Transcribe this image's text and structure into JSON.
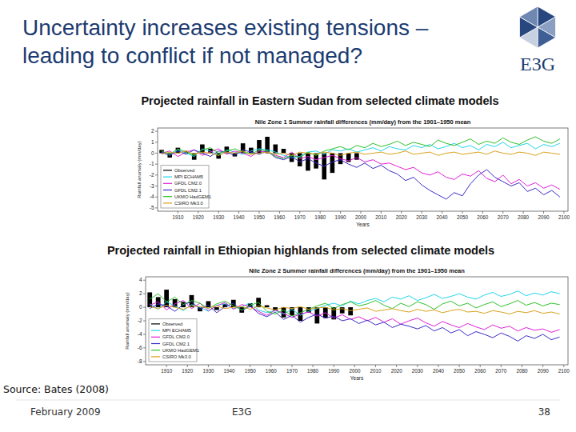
{
  "slide": {
    "title": [
      "Uncertainty increases existing tensions –",
      "leading to conflict if not managed?"
    ],
    "logo": "E3G",
    "source": "Source: Bates (2008)",
    "date": "February 2009",
    "footer": "E3G",
    "page": 38
  },
  "chart_data": [
    {
      "type": "line",
      "subtitle": "Projected rainfall in Eastern Sudan from selected climate models",
      "title": "Nile Zone 1 Summer rainfall differences (mm/day) from the 1901–1950 mean",
      "x_label": "Years",
      "y_label": "Rainfall anomaly (mm/day)",
      "xlim": [
        1900,
        2102
      ],
      "xticks": [
        1910,
        1920,
        1930,
        1940,
        1950,
        1960,
        1970,
        1980,
        1990,
        2000,
        2010,
        2020,
        2030,
        2040,
        2050,
        2060,
        2070,
        2080,
        2090,
        2100
      ],
      "ylim": [
        -5.3,
        2.3
      ],
      "yticks": [
        2,
        1,
        0,
        -1,
        -2,
        -3,
        -4,
        -5
      ],
      "grid": false,
      "legend": "lower left",
      "x": [
        1902,
        1906,
        1910,
        1914,
        1918,
        1922,
        1926,
        1930,
        1934,
        1938,
        1942,
        1946,
        1950,
        1954,
        1958,
        1962,
        1966,
        1970,
        1974,
        1978,
        1982,
        1986,
        1990,
        1994,
        1998,
        2002,
        2006,
        2010,
        2014,
        2018,
        2022,
        2026,
        2030,
        2034,
        2038,
        2042,
        2046,
        2050,
        2054,
        2058,
        2062,
        2066,
        2070,
        2074,
        2078,
        2082,
        2086,
        2090,
        2094,
        2098
      ],
      "series": [
        {
          "name": "Observed",
          "type": "bar",
          "color": "#000000",
          "values": [
            0.3,
            -0.4,
            0.5,
            0.2,
            -0.6,
            0.8,
            0.4,
            -0.5,
            0.6,
            -0.3,
            0.9,
            0.5,
            1.2,
            1.5,
            0.8,
            0.4,
            -0.8,
            -1.2,
            -1.6,
            -1.4,
            -2.4,
            -1.8,
            -1.0,
            -0.8,
            -0.6,
            null,
            null,
            null,
            null,
            null,
            null,
            null,
            null,
            null,
            null,
            null,
            null,
            null,
            null,
            null,
            null,
            null,
            null,
            null,
            null,
            null,
            null,
            null,
            null,
            null
          ]
        },
        {
          "name": "MPI ECHAM5",
          "type": "line",
          "color": "#22d4ec",
          "values": [
            0.1,
            -0.2,
            0.3,
            0.0,
            -0.3,
            0.4,
            0.2,
            -0.2,
            0.3,
            0.1,
            -0.1,
            0.2,
            0.4,
            0.3,
            0.1,
            -0.2,
            -0.4,
            -0.3,
            0.1,
            0.2,
            -0.1,
            0.3,
            0.2,
            0.4,
            0.1,
            0.3,
            0.5,
            0.2,
            0.6,
            0.4,
            0.3,
            0.7,
            0.5,
            0.8,
            0.4,
            0.6,
            0.9,
            0.5,
            0.7,
            0.3,
            0.8,
            0.6,
            1.0,
            0.5,
            0.7,
            0.9,
            0.4,
            0.8,
            0.6,
            0.9
          ]
        },
        {
          "name": "GFDL CM2.0",
          "type": "line",
          "color": "#e020d8",
          "values": [
            0.0,
            0.2,
            -0.3,
            0.1,
            0.3,
            -0.2,
            0.1,
            0.4,
            -0.1,
            0.2,
            0.0,
            -0.3,
            0.2,
            0.1,
            -0.2,
            -0.4,
            0.1,
            -0.5,
            -0.3,
            -0.6,
            -0.4,
            -0.2,
            -0.5,
            -0.7,
            -0.4,
            -0.8,
            -0.6,
            -1.0,
            -0.9,
            -1.2,
            -1.5,
            -1.3,
            -1.8,
            -2.0,
            -1.7,
            -2.2,
            -2.4,
            -1.9,
            -2.1,
            -1.6,
            -2.3,
            -2.6,
            -2.0,
            -2.8,
            -2.4,
            -3.0,
            -2.7,
            -3.2,
            -2.9,
            -3.3
          ]
        },
        {
          "name": "GFDL CM2.1",
          "type": "line",
          "color": "#3a2cc4",
          "values": [
            0.1,
            -0.2,
            0.2,
            -0.1,
            0.3,
            0.0,
            -0.3,
            0.2,
            0.1,
            -0.2,
            0.3,
            0.1,
            -0.1,
            0.2,
            -0.4,
            -0.6,
            -0.3,
            -0.8,
            -0.5,
            -0.9,
            -1.2,
            -0.8,
            -0.6,
            -1.0,
            -1.3,
            -0.9,
            -1.4,
            -1.1,
            -1.6,
            -1.9,
            -2.5,
            -2.2,
            -2.9,
            -3.4,
            -3.8,
            -4.2,
            -3.6,
            -3.9,
            -2.8,
            -2.0,
            -1.5,
            -2.2,
            -2.6,
            -3.0,
            -2.7,
            -3.5,
            -3.2,
            -3.8,
            -3.4,
            -4.0
          ]
        },
        {
          "name": "UKMO HadGEM1",
          "type": "line",
          "color": "#2ec02a",
          "values": [
            0.2,
            -0.1,
            0.4,
            0.1,
            -0.2,
            0.3,
            0.5,
            0.0,
            0.2,
            0.4,
            0.1,
            -0.1,
            0.3,
            0.2,
            -0.3,
            -0.5,
            -0.2,
            -0.4,
            0.1,
            -0.2,
            0.2,
            0.4,
            0.6,
            0.3,
            0.7,
            0.5,
            0.9,
            0.6,
            0.8,
            1.1,
            0.7,
            1.0,
            0.8,
            0.6,
            1.2,
            0.9,
            0.7,
            1.0,
            1.3,
            0.8,
            1.1,
            0.9,
            1.4,
            1.0,
            0.8,
            1.2,
            1.5,
            1.1,
            0.9,
            1.3
          ]
        },
        {
          "name": "CSIRO Mk3.0",
          "type": "line",
          "color": "#d8a21c",
          "values": [
            -0.1,
            0.1,
            0.0,
            0.2,
            -0.1,
            0.1,
            0.0,
            -0.2,
            0.1,
            0.0,
            0.2,
            -0.1,
            0.0,
            0.1,
            -0.1,
            0.0,
            -0.2,
            0.1,
            0.0,
            -0.1,
            0.1,
            0.0,
            -0.2,
            0.0,
            0.1,
            -0.1,
            0.0,
            0.1,
            -0.1,
            0.0,
            0.2,
            -0.1,
            0.0,
            0.1,
            -0.2,
            0.0,
            0.1,
            -0.1,
            0.0,
            0.1,
            -0.1,
            0.2,
            0.0,
            -0.1,
            0.1,
            0.0,
            -0.2,
            0.1,
            0.0,
            -0.1
          ]
        }
      ]
    },
    {
      "type": "line",
      "subtitle": "Projected rainfall in Ethiopian highlands from selected climate models",
      "title": "Nile Zone 2 Summer rainfall differences (mm/day) from the 1901–1950 mean",
      "x_label": "Years",
      "y_label": "Rainfall anomaly (mm/day)",
      "xlim": [
        1900,
        2102
      ],
      "xticks": [
        1910,
        1920,
        1930,
        1940,
        1950,
        1960,
        1970,
        1980,
        1990,
        2000,
        2010,
        2020,
        2030,
        2040,
        2050,
        2060,
        2070,
        2080,
        2090,
        2100
      ],
      "ylim": [
        -8.5,
        4.5
      ],
      "yticks": [
        4,
        2,
        0,
        -2,
        -4,
        -6,
        -8
      ],
      "grid": false,
      "legend": "lower left",
      "x": [
        1902,
        1906,
        1910,
        1914,
        1918,
        1922,
        1926,
        1930,
        1934,
        1938,
        1942,
        1946,
        1950,
        1954,
        1958,
        1962,
        1966,
        1970,
        1974,
        1978,
        1982,
        1986,
        1990,
        1994,
        1998,
        2002,
        2006,
        2010,
        2014,
        2018,
        2022,
        2026,
        2030,
        2034,
        2038,
        2042,
        2046,
        2050,
        2054,
        2058,
        2062,
        2066,
        2070,
        2074,
        2078,
        2082,
        2086,
        2090,
        2094,
        2098
      ],
      "series": [
        {
          "name": "Observed",
          "type": "bar",
          "color": "#000000",
          "values": [
            2.2,
            1.5,
            2.6,
            1.2,
            0.8,
            1.8,
            -0.6,
            0.9,
            -0.4,
            0.5,
            1.1,
            -0.8,
            0.6,
            1.4,
            0.3,
            -0.5,
            -1.5,
            -1.2,
            -2.0,
            -0.8,
            -2.4,
            -1.6,
            -1.8,
            -0.9,
            -1.2,
            null,
            null,
            null,
            null,
            null,
            null,
            null,
            null,
            null,
            null,
            null,
            null,
            null,
            null,
            null,
            null,
            null,
            null,
            null,
            null,
            null,
            null,
            null,
            null,
            null
          ]
        },
        {
          "name": "MPI ECHAM5",
          "type": "line",
          "color": "#22d4ec",
          "values": [
            0.5,
            -0.3,
            0.8,
            0.2,
            -0.5,
            0.4,
            0.0,
            -0.6,
            0.3,
            0.5,
            -0.2,
            0.1,
            0.6,
            -0.4,
            -0.8,
            -0.5,
            -1.0,
            -0.3,
            -1.2,
            -0.6,
            -0.2,
            0.3,
            0.6,
            0.2,
            0.9,
            0.5,
            1.0,
            1.3,
            0.8,
            1.5,
            1.2,
            1.7,
            1.0,
            1.4,
            1.9,
            1.3,
            1.6,
            2.0,
            1.5,
            1.2,
            1.8,
            2.2,
            1.6,
            1.9,
            2.4,
            1.7,
            2.1,
            1.8,
            2.3,
            2.0
          ]
        },
        {
          "name": "GFDL CM2.0",
          "type": "line",
          "color": "#e020d8",
          "values": [
            0.3,
            0.8,
            -0.4,
            0.5,
            1.0,
            -0.2,
            0.6,
            -0.5,
            0.2,
            0.7,
            -0.3,
            0.4,
            0.1,
            -0.6,
            -1.2,
            -0.4,
            -0.9,
            -1.5,
            -1.0,
            -0.7,
            -1.3,
            -0.8,
            -1.6,
            -1.1,
            -1.8,
            -1.4,
            -2.0,
            -1.5,
            -2.2,
            -1.7,
            -2.5,
            -2.0,
            -1.6,
            -2.3,
            -2.8,
            -2.1,
            -2.6,
            -3.0,
            -2.4,
            -2.9,
            -3.3,
            -2.6,
            -3.1,
            -2.8,
            -3.5,
            -3.0,
            -3.4,
            -3.2,
            -3.7,
            -3.3
          ]
        },
        {
          "name": "GFDL CM2.1",
          "type": "line",
          "color": "#3a2cc4",
          "values": [
            -0.2,
            0.5,
            0.2,
            -0.6,
            0.4,
            0.8,
            -0.3,
            0.3,
            -0.8,
            0.1,
            0.6,
            -0.5,
            0.2,
            -0.9,
            -1.4,
            -0.7,
            -1.8,
            -1.2,
            -2.2,
            -1.5,
            -1.0,
            -1.6,
            -1.3,
            -2.0,
            -1.7,
            -2.4,
            -1.9,
            -2.6,
            -2.2,
            -3.0,
            -2.5,
            -2.8,
            -3.2,
            -2.7,
            -3.5,
            -3.0,
            -3.8,
            -3.3,
            -4.2,
            -3.6,
            -4.0,
            -4.5,
            -3.8,
            -4.3,
            -5.0,
            -4.2,
            -4.6,
            -4.0,
            -4.8,
            -4.4
          ]
        },
        {
          "name": "UKMO HadGEM1",
          "type": "line",
          "color": "#2ec02a",
          "values": [
            1.2,
            2.0,
            0.8,
            1.5,
            0.4,
            1.0,
            0.6,
            -0.2,
            0.5,
            0.9,
            0.2,
            -0.4,
            0.3,
            0.7,
            -0.6,
            -1.0,
            -0.4,
            -1.3,
            -0.8,
            -0.3,
            0.2,
            0.6,
            -0.2,
            0.4,
            0.8,
            0.2,
            0.5,
            1.0,
            0.3,
            -0.2,
            0.6,
            0.1,
            0.8,
            0.4,
            -0.3,
            0.5,
            0.9,
            0.2,
            0.6,
            -0.1,
            0.4,
            0.8,
            0.1,
            0.5,
            1.0,
            0.3,
            0.7,
            0.2,
            0.6,
            0.4
          ]
        },
        {
          "name": "CSIRO Mk3.0",
          "type": "line",
          "color": "#d8a21c",
          "values": [
            0.1,
            -0.2,
            0.3,
            0.0,
            -0.3,
            0.2,
            0.1,
            -0.1,
            0.2,
            -0.2,
            0.0,
            0.1,
            -0.3,
            0.2,
            -0.1,
            -0.4,
            0.0,
            -0.2,
            0.1,
            -0.3,
            -0.1,
            0.0,
            -0.4,
            -0.2,
            -0.5,
            -0.3,
            -0.1,
            -0.6,
            -0.4,
            -0.2,
            -0.5,
            -0.7,
            -0.3,
            -0.6,
            -0.4,
            -0.8,
            -0.5,
            -0.3,
            -0.7,
            -0.6,
            -0.9,
            -0.5,
            -0.7,
            -1.0,
            -0.6,
            -0.8,
            -0.5,
            -0.9,
            -0.7,
            -1.0
          ]
        }
      ]
    }
  ]
}
